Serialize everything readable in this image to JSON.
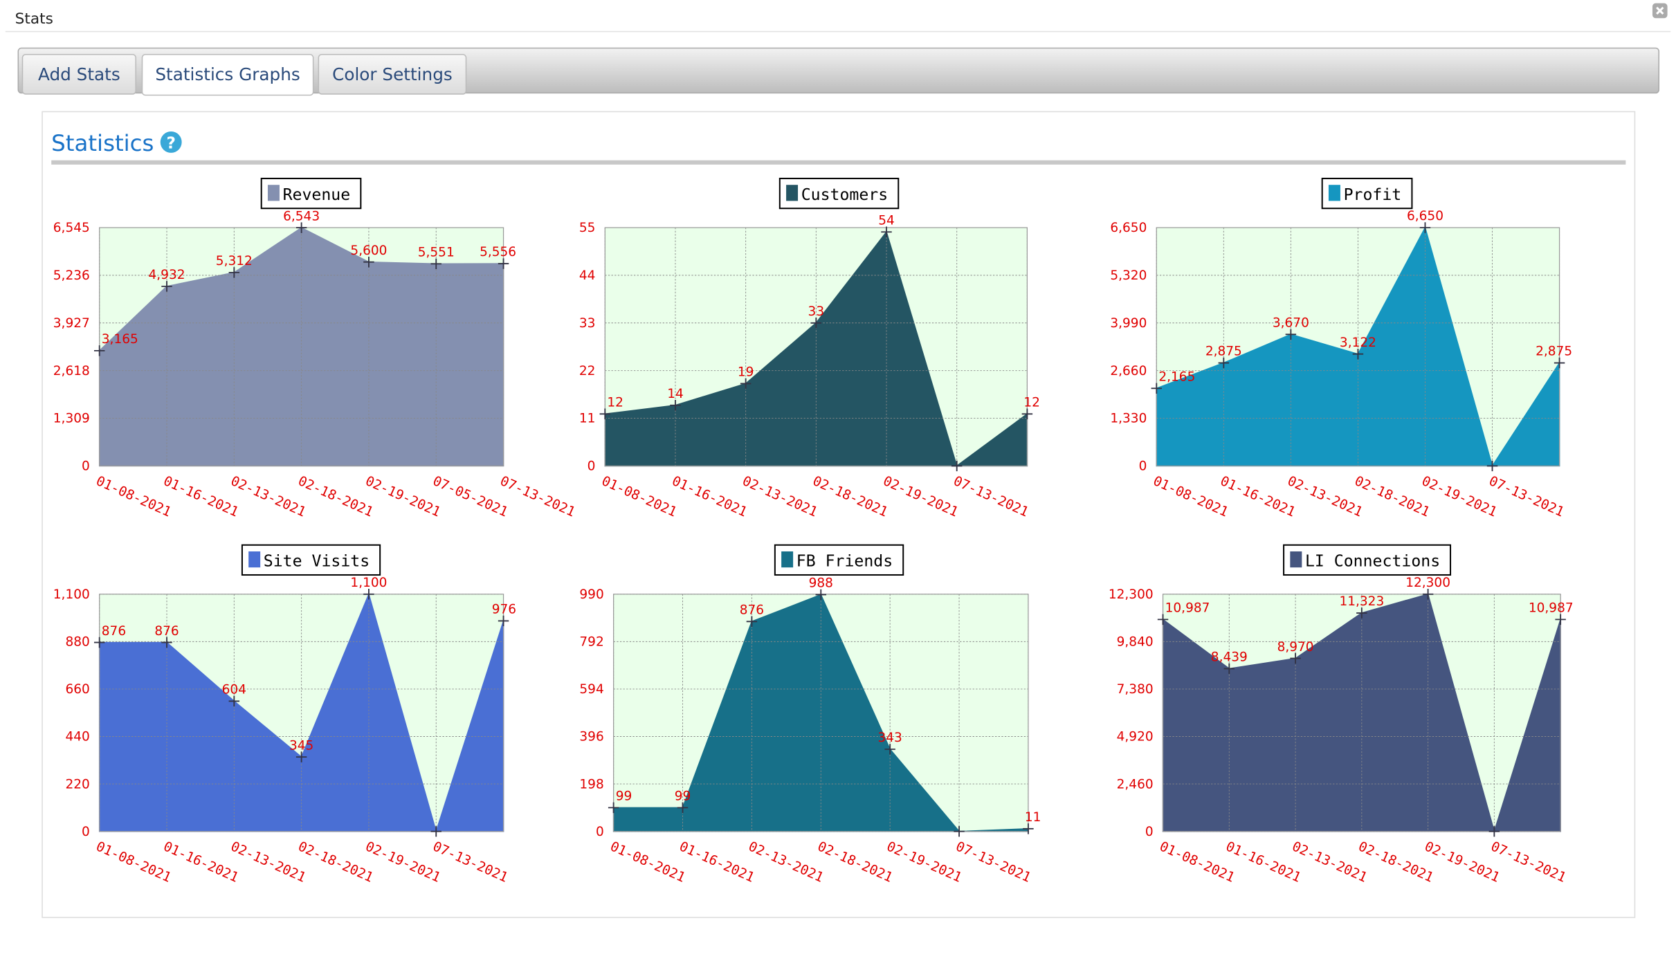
{
  "window_title": "Stats",
  "tabs": [
    "Add Stats",
    "Statistics Graphs",
    "Color Settings"
  ],
  "heading": "Statistics",
  "help_icon": "?",
  "chart_data": [
    {
      "type": "area",
      "title": "Revenue",
      "categories": [
        "01-08-2021",
        "01-16-2021",
        "02-13-2021",
        "02-18-2021",
        "02-19-2021",
        "07-05-2021",
        "07-13-2021"
      ],
      "values": [
        3165,
        4932,
        5312,
        6543,
        5600,
        5551,
        5556
      ],
      "value_labels": [
        "3,165",
        "4,932",
        "5,312",
        "6,543",
        "5,600",
        "5,551",
        "5,556"
      ],
      "color": "#8490b0",
      "ylim": [
        0,
        6545
      ],
      "yticks": [
        0,
        {
          "value": 1309,
          "label": "1,309"
        },
        {
          "value": 2618,
          "label": "2,618"
        },
        {
          "value": 3927,
          "label": "3,927"
        },
        {
          "value": 5236,
          "label": "5,236"
        },
        {
          "value": 6545,
          "label": "6,545"
        }
      ],
      "grid": true
    },
    {
      "type": "area",
      "title": "Customers",
      "categories": [
        "01-08-2021",
        "01-16-2021",
        "02-13-2021",
        "02-18-2021",
        "02-19-2021",
        "07-13-2021",
        null
      ],
      "values": [
        12,
        14,
        19,
        33,
        54,
        0,
        12
      ],
      "value_labels": [
        "12",
        "14",
        "19",
        "33",
        "54",
        null,
        "12"
      ],
      "color": "#245563",
      "ylim": [
        0,
        55
      ],
      "yticks": [
        0,
        11,
        22,
        33,
        44,
        55
      ],
      "grid": true
    },
    {
      "type": "area",
      "title": "Profit",
      "categories": [
        "01-08-2021",
        "01-16-2021",
        "02-13-2021",
        "02-18-2021",
        "02-19-2021",
        "07-13-2021",
        null
      ],
      "values": [
        2165,
        2875,
        3670,
        3122,
        6650,
        0,
        2875
      ],
      "value_labels": [
        "2,165",
        "2,875",
        "3,670",
        "3,122",
        "6,650",
        null,
        "2,875"
      ],
      "color": "#1596c0",
      "ylim": [
        0,
        6650
      ],
      "yticks": [
        0,
        {
          "value": 1330,
          "label": "1,330"
        },
        {
          "value": 2660,
          "label": "2,660"
        },
        {
          "value": 3990,
          "label": "3,990"
        },
        {
          "value": 5320,
          "label": "5,320"
        },
        {
          "value": 6650,
          "label": "6,650"
        }
      ],
      "grid": true
    },
    {
      "type": "area",
      "title": "Site Visits",
      "categories": [
        "01-08-2021",
        "01-16-2021",
        "02-13-2021",
        "02-18-2021",
        "02-19-2021",
        "07-13-2021",
        null
      ],
      "values": [
        876,
        876,
        604,
        345,
        1100,
        0,
        976
      ],
      "value_labels": [
        "876",
        "876",
        "604",
        "345",
        "1,100",
        null,
        "976"
      ],
      "color": "#4a6fd4",
      "ylim": [
        0,
        1100
      ],
      "yticks": [
        0,
        220,
        440,
        660,
        880,
        {
          "value": 1100,
          "label": "1,100"
        }
      ],
      "grid": true
    },
    {
      "type": "area",
      "title": "FB Friends",
      "categories": [
        "01-08-2021",
        "01-16-2021",
        "02-13-2021",
        "02-18-2021",
        "02-19-2021",
        "07-13-2021",
        null
      ],
      "values": [
        99,
        99,
        876,
        988,
        343,
        0,
        11
      ],
      "value_labels": [
        "99",
        "99",
        "876",
        "988",
        "343",
        null,
        "11"
      ],
      "color": "#177089",
      "ylim": [
        0,
        990
      ],
      "yticks": [
        0,
        198,
        396,
        594,
        792,
        990
      ],
      "grid": true
    },
    {
      "type": "area",
      "title": "LI Connections",
      "categories": [
        "01-08-2021",
        "01-16-2021",
        "02-13-2021",
        "02-18-2021",
        "02-19-2021",
        "07-13-2021",
        null
      ],
      "values": [
        10987,
        8439,
        8970,
        11323,
        12300,
        0,
        10987
      ],
      "value_labels": [
        "10,987",
        "8,439",
        "8,970",
        "11,323",
        "12,300",
        null,
        "10,987"
      ],
      "color": "#45557f",
      "ylim": [
        0,
        12300
      ],
      "yticks": [
        0,
        {
          "value": 2460,
          "label": "2,460"
        },
        {
          "value": 4920,
          "label": "4,920"
        },
        {
          "value": 7380,
          "label": "7,380"
        },
        {
          "value": 9840,
          "label": "9,840"
        },
        {
          "value": 12300,
          "label": "12,300"
        }
      ],
      "grid": true
    }
  ]
}
